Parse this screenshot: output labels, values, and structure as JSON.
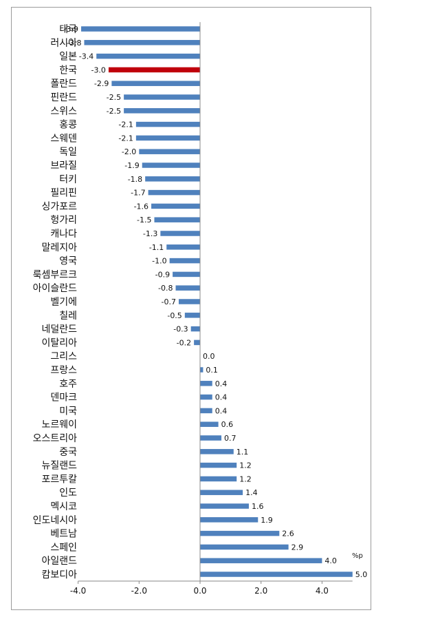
{
  "chart_data": {
    "type": "bar",
    "orientation": "horizontal",
    "title": "",
    "xlabel": "",
    "ylabel": "",
    "unit_label": "%p",
    "xlim": [
      -4.0,
      5.0
    ],
    "xticks": [
      "-4.0",
      "-2.0",
      "0.0",
      "2.0",
      "4.0"
    ],
    "xtick_values": [
      -4,
      -2,
      0,
      2,
      4
    ],
    "grid": false,
    "legend": "none",
    "colors": {
      "bar": "#4f81bd",
      "highlight": "#c0000c"
    },
    "highlight_category": "한국",
    "categories": [
      "태국",
      "러시아",
      "일본",
      "한국",
      "폴란드",
      "핀란드",
      "스위스",
      "홍콩",
      "스웨덴",
      "독일",
      "브라질",
      "터키",
      "필리핀",
      "싱가포르",
      "헝가리",
      "캐나다",
      "말레지아",
      "영국",
      "룩셈부르크",
      "아이슬란드",
      "벨기에",
      "칠레",
      "네덜란드",
      "이탈리아",
      "그리스",
      "프랑스",
      "호주",
      "덴마크",
      "미국",
      "노르웨이",
      "오스트리아",
      "중국",
      "뉴질랜드",
      "포르투칼",
      "인도",
      "멕시코",
      "인도네시아",
      "베트남",
      "스페인",
      "아일랜드",
      "캄보디아"
    ],
    "values": [
      -3.9,
      -3.8,
      -3.4,
      -3.0,
      -2.9,
      -2.5,
      -2.5,
      -2.1,
      -2.1,
      -2.0,
      -1.9,
      -1.8,
      -1.7,
      -1.6,
      -1.5,
      -1.3,
      -1.1,
      -1.0,
      -0.9,
      -0.8,
      -0.7,
      -0.5,
      -0.3,
      -0.2,
      0.0,
      0.1,
      0.4,
      0.4,
      0.4,
      0.6,
      0.7,
      1.1,
      1.2,
      1.2,
      1.4,
      1.6,
      1.9,
      2.6,
      2.9,
      4.0,
      5.0
    ],
    "value_labels": [
      "-3.9",
      "-3.8",
      "-3.4",
      "-3.0",
      "-2.9",
      "-2.5",
      "-2.5",
      "-2.1",
      "-2.1",
      "-2.0",
      "-1.9",
      "-1.8",
      "-1.7",
      "-1.6",
      "-1.5",
      "-1.3",
      "-1.1",
      "-1.0",
      "-0.9",
      "-0.8",
      "-0.7",
      "-0.5",
      "-0.3",
      "-0.2",
      "0.0",
      "0.1",
      "0.4",
      "0.4",
      "0.4",
      "0.6",
      "0.7",
      "1.1",
      "1.2",
      "1.2",
      "1.4",
      "1.6",
      "1.9",
      "2.6",
      "2.9",
      "4.0",
      "5.0"
    ]
  }
}
